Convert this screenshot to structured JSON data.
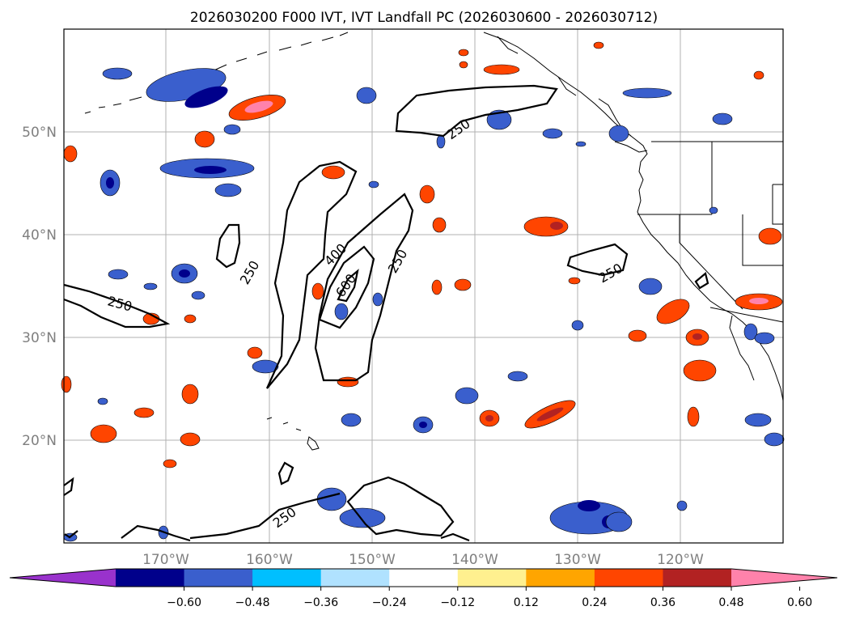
{
  "title": "2026030200 F000 IVT, IVT Landfall PC (2026030600 - 2026030712)",
  "lat_labels": [
    "50°N",
    "40°N",
    "30°N",
    "20°N"
  ],
  "lon_labels": [
    "170°W",
    "160°W",
    "150°W",
    "140°W",
    "130°W",
    "120°W"
  ],
  "colorbar": {
    "ticks": [
      "−0.60",
      "−0.48",
      "−0.36",
      "−0.24",
      "−0.12",
      "0.12",
      "0.24",
      "0.36",
      "0.48",
      "0.60"
    ],
    "colors": [
      "#9932cc",
      "#00008b",
      "#3a5fcd",
      "#00bfff",
      "#b0e2ff",
      "#ffffff",
      "#fff08f",
      "#ffa500",
      "#ff4500",
      "#b22222",
      "#ff82ab"
    ]
  },
  "contour_labels": [
    "250",
    "250",
    "250",
    "250",
    "250",
    "400",
    "600"
  ]
}
